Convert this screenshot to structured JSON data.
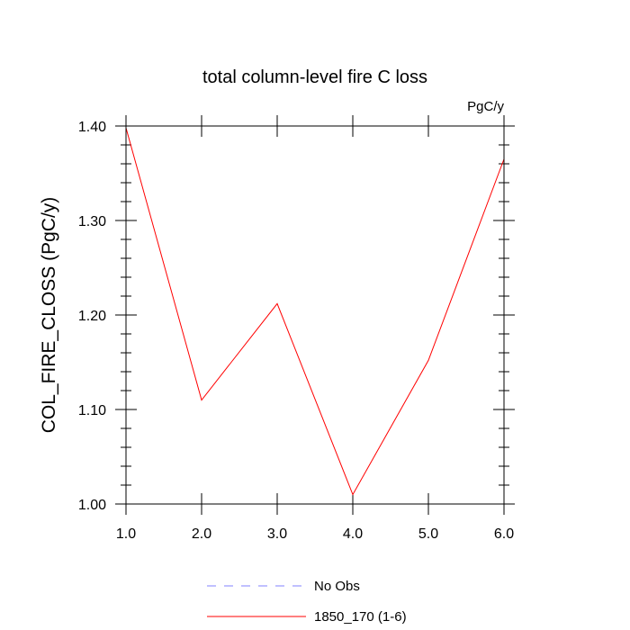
{
  "chart_data": {
    "type": "line",
    "title": "total column-level fire C loss",
    "units_label": "PgC/y",
    "xlabel": "",
    "ylabel": "COL_FIRE_CLOSS  (PgC/y)",
    "xlim": [
      1.0,
      6.0
    ],
    "ylim": [
      1.0,
      1.4
    ],
    "x_ticks": [
      1.0,
      2.0,
      3.0,
      4.0,
      5.0,
      6.0
    ],
    "x_tick_labels": [
      "1.0",
      "2.0",
      "3.0",
      "4.0",
      "5.0",
      "6.0"
    ],
    "y_ticks": [
      1.0,
      1.1,
      1.2,
      1.3,
      1.4
    ],
    "y_tick_labels": [
      "1.00",
      "1.10",
      "1.20",
      "1.30",
      "1.40"
    ],
    "grid": false,
    "legend_position": "bottom",
    "series": [
      {
        "name": "1850_170 (1-6)",
        "color": "#ff0000",
        "dash": "solid",
        "x": [
          1.0,
          2.0,
          3.0,
          4.0,
          5.0,
          6.0
        ],
        "values": [
          1.398,
          1.11,
          1.212,
          1.01,
          1.152,
          1.365
        ]
      }
    ],
    "legend": [
      {
        "label": "No Obs",
        "color": "#8080ff",
        "dash": "dashed"
      },
      {
        "label": "1850_170 (1-6)",
        "color": "#ff0000",
        "dash": "solid"
      }
    ]
  }
}
